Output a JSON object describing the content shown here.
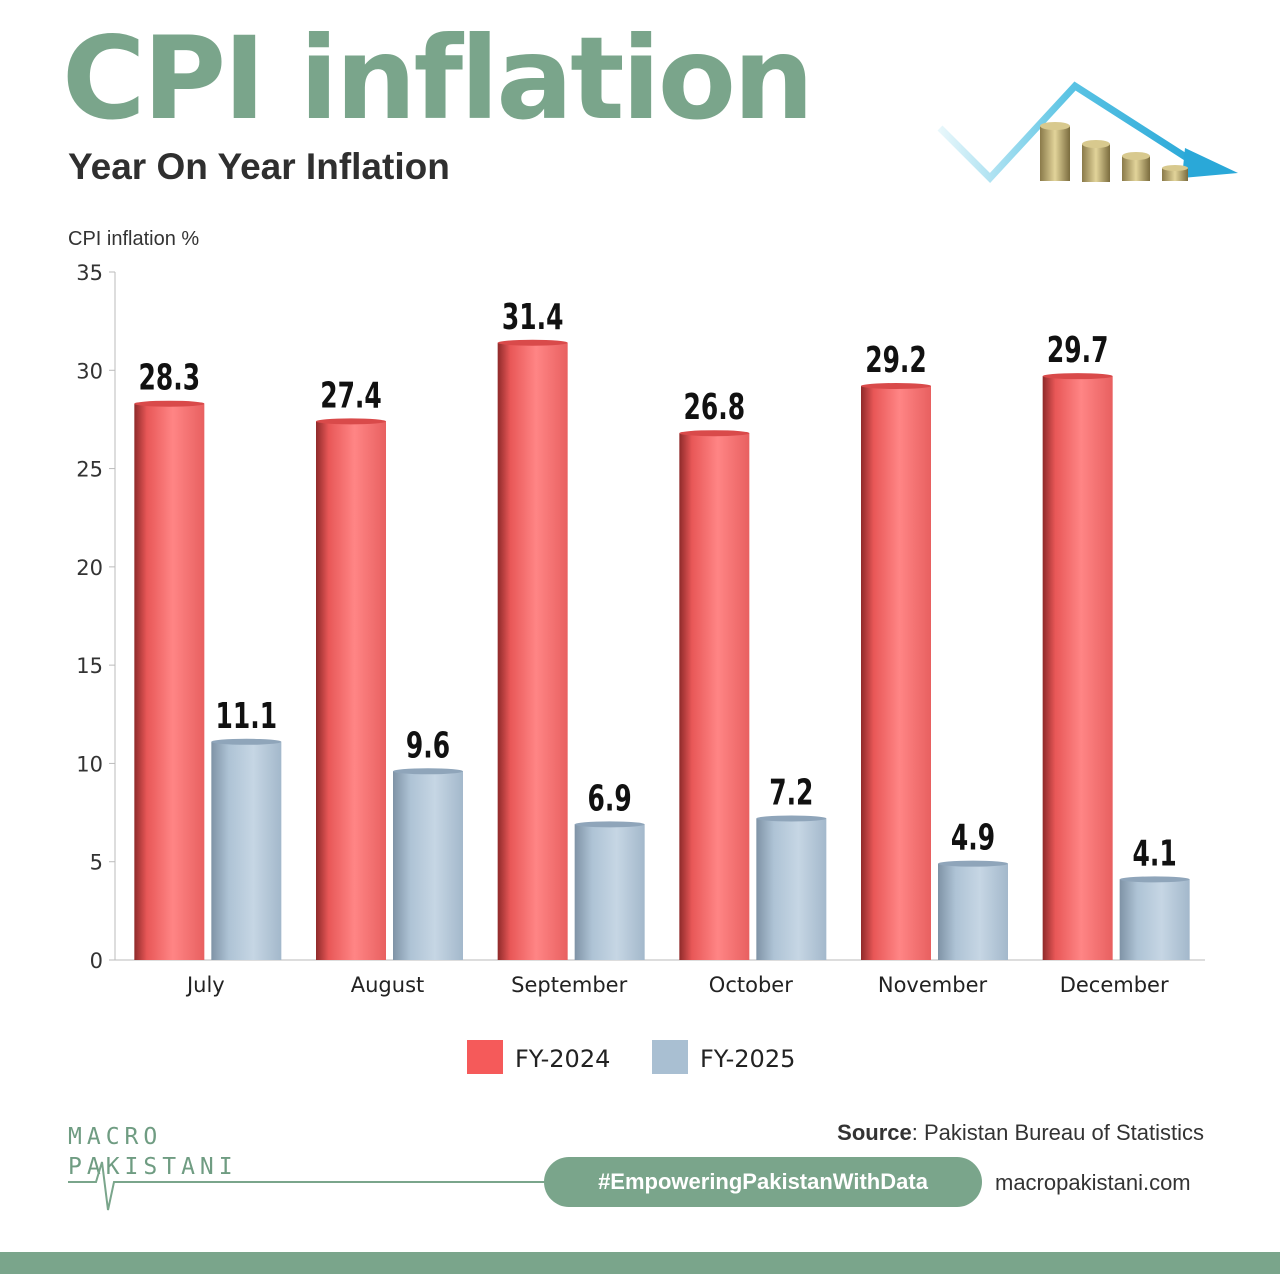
{
  "header": {
    "title": "CPI inflation",
    "subtitle": "Year On Year Inflation"
  },
  "colors": {
    "accent_green": "#7aa58b",
    "fy2024": "#f06262",
    "fy2025": "#a9bfd2"
  },
  "chart_data": {
    "type": "bar",
    "title": "CPI inflation",
    "subtitle": "Year On Year Inflation",
    "ylabel": "CPI inflation %",
    "xlabel": "",
    "ylim": [
      0,
      35
    ],
    "yticks": [
      0,
      5,
      10,
      15,
      20,
      25,
      30,
      35
    ],
    "categories": [
      "July",
      "August",
      "September",
      "October",
      "November",
      "December"
    ],
    "series": [
      {
        "name": "FY-2024",
        "color": "#f06262",
        "values": [
          28.3,
          27.4,
          31.4,
          26.8,
          29.2,
          29.7
        ]
      },
      {
        "name": "FY-2025",
        "color": "#a9bfd2",
        "values": [
          11.1,
          9.6,
          6.9,
          7.2,
          4.9,
          4.1
        ]
      }
    ],
    "legend_position": "bottom-center",
    "grid": false
  },
  "footer": {
    "source_label": "Source",
    "source_text": ": Pakistan Bureau of Statistics",
    "logo_line1": "MACRO",
    "logo_line2": "PAKISTANI",
    "hashtag": "#EmpoweringPakistanWithData",
    "website": "macropakistani.com"
  },
  "icons": [
    "coins-downtrend-icon",
    "logo-pulse-icon"
  ]
}
